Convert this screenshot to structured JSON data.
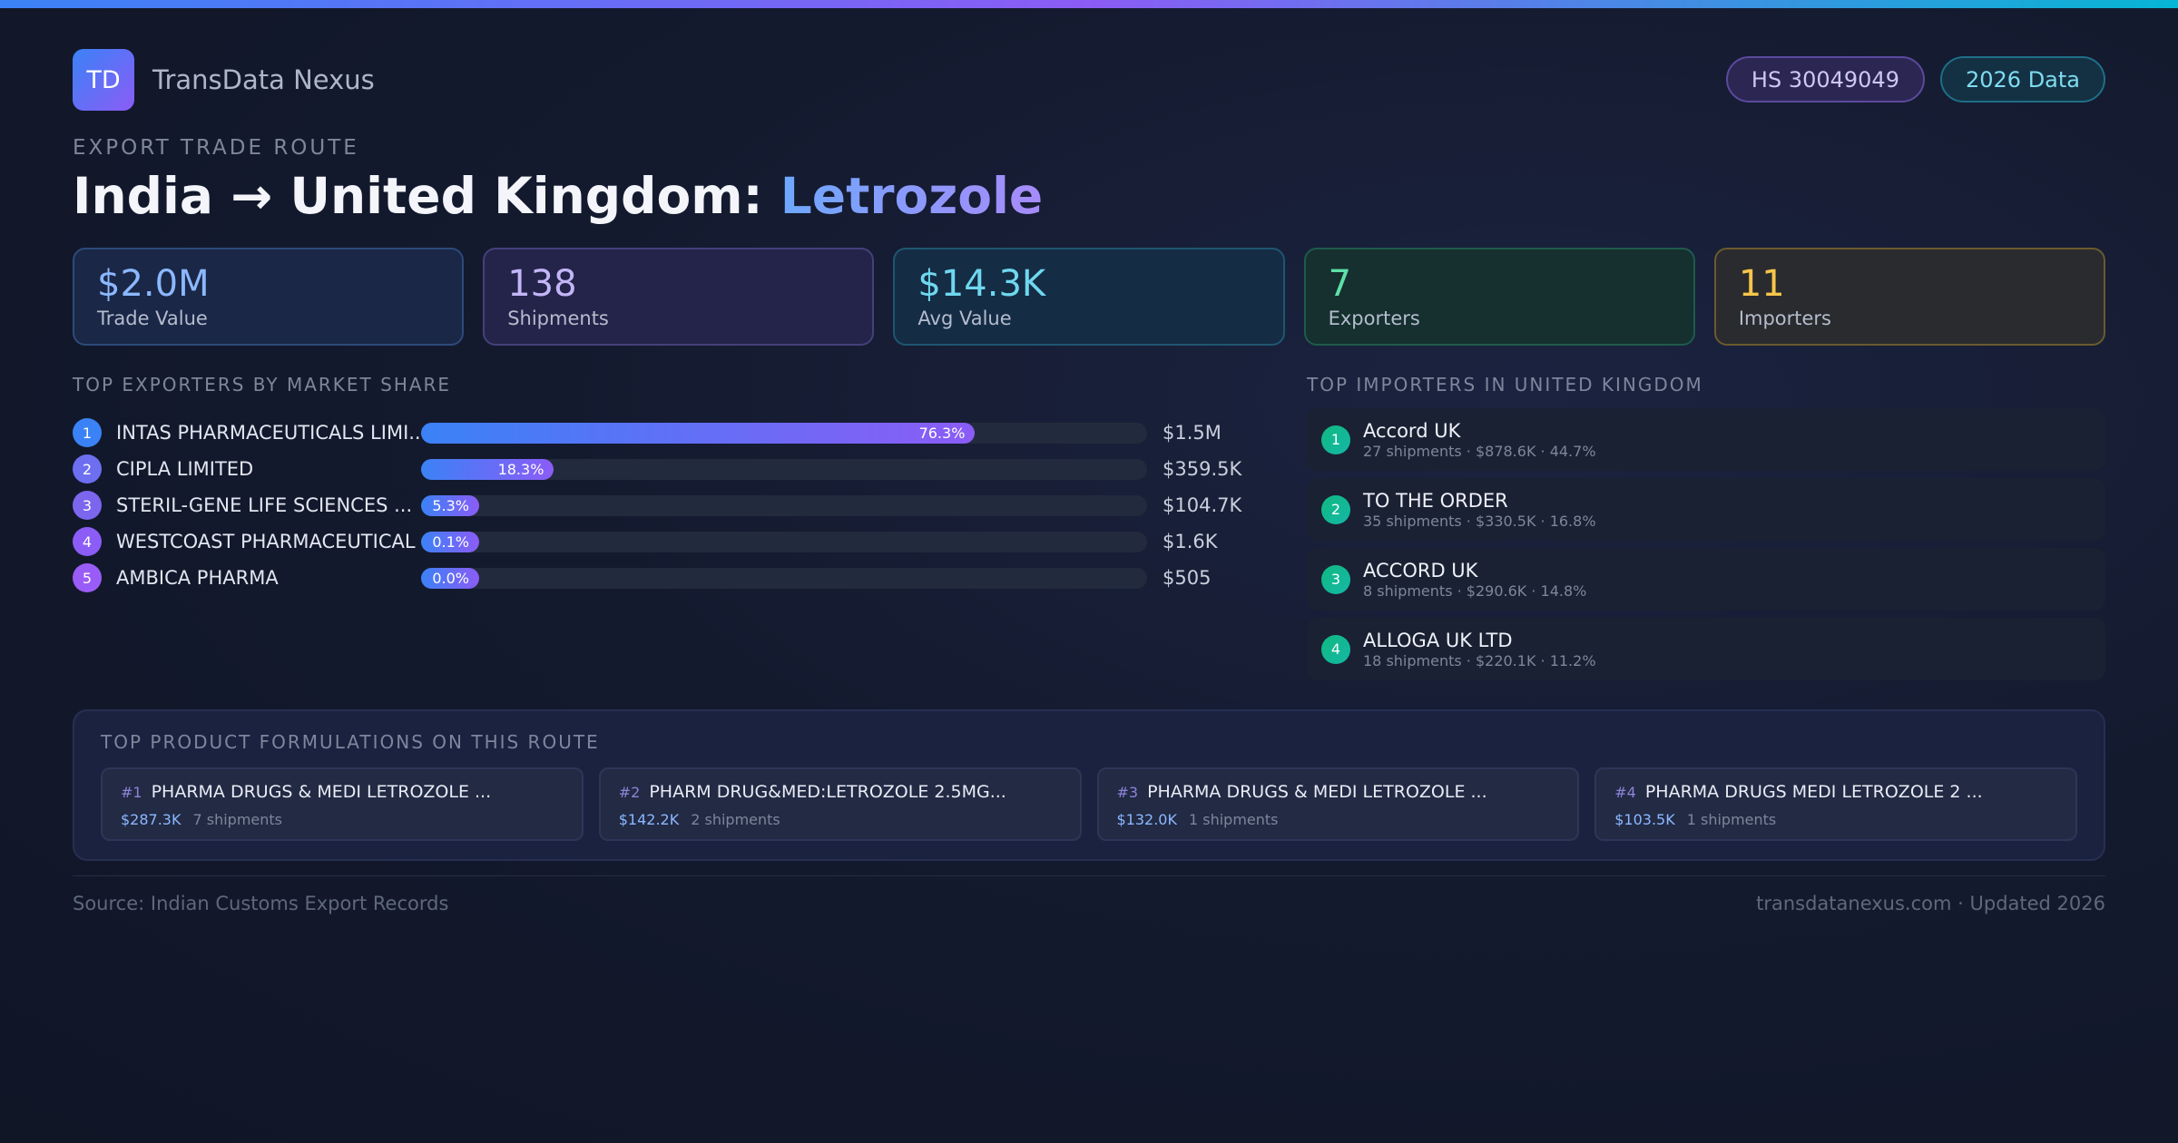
{
  "brand": {
    "logo_text": "TD",
    "name": "TransData Nexus"
  },
  "badges": {
    "hs_code": "HS 30049049",
    "data_year": "2026 Data"
  },
  "header": {
    "eyebrow": "EXPORT TRADE ROUTE",
    "title_route": "India → United Kingdom: ",
    "title_product": "Letrozole"
  },
  "stats": [
    {
      "value": "$2.0M",
      "label": "Trade Value"
    },
    {
      "value": "138",
      "label": "Shipments"
    },
    {
      "value": "$14.3K",
      "label": "Avg Value"
    },
    {
      "value": "7",
      "label": "Exporters"
    },
    {
      "value": "11",
      "label": "Importers"
    }
  ],
  "exporters": {
    "section_title": "TOP EXPORTERS BY MARKET SHARE",
    "items": [
      {
        "rank": "1",
        "name": "INTAS PHARMACEUTICALS LIMI...",
        "share_label": "76.3%",
        "share": 76.3,
        "value": "$1.5M",
        "color": "#3b82f6"
      },
      {
        "rank": "2",
        "name": "CIPLA LIMITED",
        "share_label": "18.3%",
        "share": 18.3,
        "value": "$359.5K",
        "color": "#6d6ff0"
      },
      {
        "rank": "3",
        "name": "STERIL-GENE LIFE SCIENCES ...",
        "share_label": "5.3%",
        "share": 5.3,
        "value": "$104.7K",
        "color": "#7c66ee"
      },
      {
        "rank": "4",
        "name": "WESTCOAST PHARMACEUTICAL W...",
        "share_label": "0.1%",
        "share": 0.1,
        "value": "$1.6K",
        "color": "#8b5cf6"
      },
      {
        "rank": "5",
        "name": "AMBICA PHARMA",
        "share_label": "0.0%",
        "share": 0.0,
        "value": "$505",
        "color": "#9a5cf6"
      }
    ]
  },
  "importers": {
    "section_title": "TOP IMPORTERS IN UNITED KINGDOM",
    "items": [
      {
        "rank": "1",
        "name": "Accord UK",
        "meta": "27 shipments · $878.6K · 44.7%"
      },
      {
        "rank": "2",
        "name": "TO THE ORDER",
        "meta": "35 shipments · $330.5K · 16.8%"
      },
      {
        "rank": "3",
        "name": "ACCORD UK",
        "meta": "8 shipments · $290.6K · 14.8%"
      },
      {
        "rank": "4",
        "name": "ALLOGA UK LTD",
        "meta": "18 shipments · $220.1K · 11.2%"
      }
    ]
  },
  "formulations": {
    "section_title": "TOP PRODUCT FORMULATIONS ON THIS ROUTE",
    "items": [
      {
        "num": "#1",
        "name": "PHARMA DRUGS & MEDI LETROZOLE ...",
        "value": "$287.3K",
        "shipments": "7 shipments"
      },
      {
        "num": "#2",
        "name": "PHARM DRUG&MED:LETROZOLE 2.5MG...",
        "value": "$142.2K",
        "shipments": "2 shipments"
      },
      {
        "num": "#3",
        "name": "PHARMA DRUGS & MEDI LETROZOLE ...",
        "value": "$132.0K",
        "shipments": "1 shipments"
      },
      {
        "num": "#4",
        "name": "PHARMA DRUGS MEDI LETROZOLE 2 ...",
        "value": "$103.5K",
        "shipments": "1 shipments"
      }
    ]
  },
  "footer": {
    "source": "Source: Indian Customs Export Records",
    "site": "transdatanexus.com · Updated 2026"
  }
}
